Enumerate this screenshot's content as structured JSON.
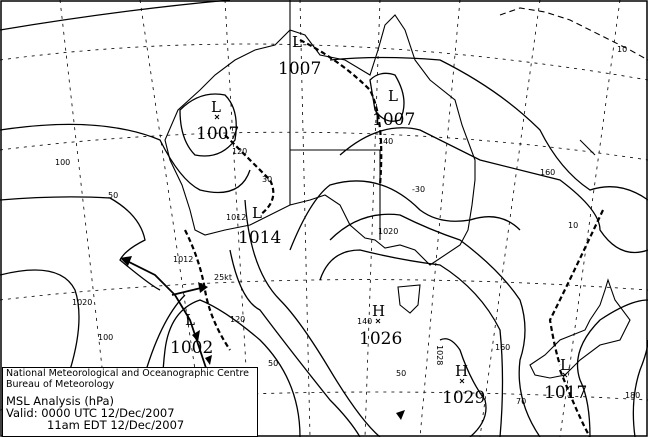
{
  "map": {
    "pressure_systems": [
      {
        "type": "L",
        "value": "1007"
      },
      {
        "type": "L",
        "value": "1007"
      },
      {
        "type": "L",
        "value": "1007"
      },
      {
        "type": "L",
        "value": "1014"
      },
      {
        "type": "L",
        "value": "1002"
      },
      {
        "type": "H",
        "value": "1026"
      },
      {
        "type": "H",
        "value": "1029"
      },
      {
        "type": "L",
        "value": "1017"
      }
    ],
    "contour_labels": [
      "100",
      "50",
      "30",
      "1012",
      "1012",
      "25kt",
      "120",
      "1020",
      "100",
      "50",
      "140",
      "-30",
      "1020",
      "160",
      "10",
      "140",
      "1028",
      "160",
      "50",
      "70",
      "180",
      "10",
      "120"
    ]
  },
  "legend": {
    "org_line1": "National Meteorological and Oceanographic Centre",
    "org_line2": "Bureau of Meteorology",
    "title": "MSL Analysis (hPa)",
    "valid_utc": "Valid: 0000 UTC 12/Dec/2007",
    "valid_local": "11am EDT 12/Dec/2007"
  }
}
